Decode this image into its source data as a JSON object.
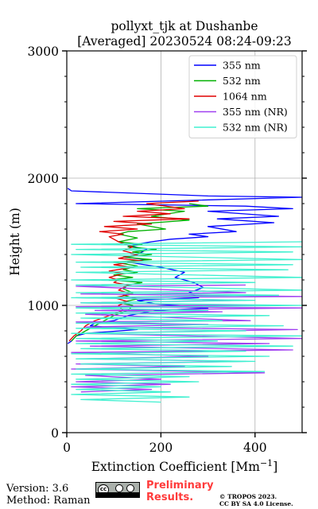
{
  "chart_data": {
    "type": "line",
    "title_line1": "pollyxt_tjk at Dushanbe",
    "title_line2": "[Averaged] 20230524 08:24-09:23",
    "xlabel": "Extinction Coefficient [Mm",
    "xlabel_sup": "−1",
    "xlabel_end": "]",
    "ylabel": "Height (m)",
    "xlim": [
      0,
      500
    ],
    "ylim": [
      0,
      3000
    ],
    "xticks": [
      0,
      200,
      400
    ],
    "yticks": [
      0,
      1000,
      2000,
      3000
    ],
    "grid": true,
    "legend_position": "top-right",
    "series": [
      {
        "name": "355 nm",
        "color": "#0000ff",
        "points": [
          [
            2,
            1920
          ],
          [
            10,
            1900
          ],
          [
            300,
            1860
          ],
          [
            500,
            1850
          ],
          [
            20,
            1800
          ],
          [
            380,
            1780
          ],
          [
            480,
            1760
          ],
          [
            300,
            1740
          ],
          [
            450,
            1700
          ],
          [
            320,
            1680
          ],
          [
            440,
            1650
          ],
          [
            300,
            1620
          ],
          [
            360,
            1580
          ],
          [
            260,
            1560
          ],
          [
            300,
            1540
          ],
          [
            220,
            1520
          ],
          [
            180,
            1500
          ],
          [
            130,
            1470
          ],
          [
            170,
            1440
          ],
          [
            150,
            1400
          ],
          [
            120,
            1380
          ],
          [
            170,
            1360
          ],
          [
            130,
            1340
          ],
          [
            200,
            1300
          ],
          [
            250,
            1260
          ],
          [
            230,
            1220
          ],
          [
            270,
            1180
          ],
          [
            290,
            1140
          ],
          [
            260,
            1100
          ],
          [
            280,
            1060
          ],
          [
            150,
            1040
          ],
          [
            190,
            1010
          ],
          [
            300,
            980
          ],
          [
            190,
            960
          ],
          [
            130,
            920
          ],
          [
            100,
            880
          ],
          [
            60,
            860
          ],
          [
            50,
            840
          ],
          [
            150,
            810
          ],
          [
            40,
            780
          ],
          [
            20,
            760
          ],
          [
            10,
            720
          ],
          [
            2,
            700
          ]
        ]
      },
      {
        "name": "532 nm",
        "color": "#00b000",
        "points": [
          [
            260,
            1800
          ],
          [
            300,
            1780
          ],
          [
            150,
            1760
          ],
          [
            250,
            1740
          ],
          [
            180,
            1700
          ],
          [
            260,
            1670
          ],
          [
            150,
            1640
          ],
          [
            210,
            1600
          ],
          [
            130,
            1580
          ],
          [
            110,
            1560
          ],
          [
            150,
            1530
          ],
          [
            110,
            1500
          ],
          [
            160,
            1480
          ],
          [
            130,
            1460
          ],
          [
            190,
            1440
          ],
          [
            140,
            1420
          ],
          [
            180,
            1400
          ],
          [
            120,
            1380
          ],
          [
            180,
            1360
          ],
          [
            100,
            1340
          ],
          [
            150,
            1310
          ],
          [
            120,
            1280
          ],
          [
            150,
            1260
          ],
          [
            100,
            1240
          ],
          [
            140,
            1220
          ],
          [
            90,
            1200
          ],
          [
            160,
            1180
          ],
          [
            130,
            1160
          ],
          [
            120,
            1130
          ],
          [
            140,
            1100
          ],
          [
            120,
            1080
          ],
          [
            150,
            1050
          ],
          [
            110,
            1020
          ],
          [
            140,
            1000
          ],
          [
            130,
            960
          ],
          [
            100,
            920
          ],
          [
            80,
            880
          ],
          [
            60,
            840
          ],
          [
            40,
            800
          ],
          [
            20,
            760
          ],
          [
            10,
            720
          ]
        ]
      },
      {
        "name": "1064 nm",
        "color": "#e00000",
        "points": [
          [
            280,
            1820
          ],
          [
            170,
            1800
          ],
          [
            250,
            1760
          ],
          [
            150,
            1740
          ],
          [
            220,
            1720
          ],
          [
            120,
            1700
          ],
          [
            260,
            1680
          ],
          [
            100,
            1660
          ],
          [
            180,
            1640
          ],
          [
            80,
            1620
          ],
          [
            150,
            1600
          ],
          [
            70,
            1580
          ],
          [
            120,
            1560
          ],
          [
            90,
            1540
          ],
          [
            110,
            1500
          ],
          [
            140,
            1460
          ],
          [
            120,
            1430
          ],
          [
            150,
            1400
          ],
          [
            110,
            1370
          ],
          [
            160,
            1350
          ],
          [
            100,
            1320
          ],
          [
            140,
            1300
          ],
          [
            90,
            1270
          ],
          [
            120,
            1250
          ],
          [
            90,
            1220
          ],
          [
            110,
            1200
          ],
          [
            100,
            1180
          ],
          [
            130,
            1160
          ],
          [
            110,
            1120
          ],
          [
            140,
            1090
          ],
          [
            100,
            1060
          ],
          [
            130,
            1030
          ],
          [
            110,
            1000
          ],
          [
            120,
            960
          ],
          [
            90,
            920
          ],
          [
            60,
            880
          ],
          [
            40,
            840
          ],
          [
            30,
            800
          ],
          [
            15,
            760
          ],
          [
            5,
            720
          ]
        ]
      },
      {
        "name": "355 nm (NR)",
        "color": "#a040f0",
        "points": [
          [
            380,
            1160
          ],
          [
            20,
            1150
          ],
          [
            380,
            1100
          ],
          [
            30,
            1090
          ],
          [
            500,
            1070
          ],
          [
            20,
            1060
          ],
          [
            380,
            1040
          ],
          [
            30,
            1020
          ],
          [
            400,
            1000
          ],
          [
            20,
            990
          ],
          [
            500,
            980
          ],
          [
            60,
            960
          ],
          [
            330,
            950
          ],
          [
            40,
            930
          ],
          [
            390,
            880
          ],
          [
            20,
            870
          ],
          [
            300,
            850
          ],
          [
            40,
            830
          ],
          [
            490,
            810
          ],
          [
            30,
            780
          ],
          [
            500,
            740
          ],
          [
            20,
            720
          ],
          [
            430,
            700
          ],
          [
            50,
            680
          ],
          [
            480,
            650
          ],
          [
            10,
            630
          ],
          [
            300,
            600
          ],
          [
            40,
            580
          ],
          [
            380,
            560
          ],
          [
            20,
            540
          ],
          [
            250,
            520
          ],
          [
            10,
            500
          ],
          [
            420,
            470
          ],
          [
            40,
            450
          ],
          [
            200,
            420
          ],
          [
            20,
            400
          ],
          [
            220,
            380
          ],
          [
            10,
            360
          ],
          [
            180,
            340
          ],
          [
            30,
            320
          ]
        ]
      },
      {
        "name": "532 nm (NR)",
        "color": "#40f0d0",
        "points": [
          [
            500,
            1500
          ],
          [
            10,
            1480
          ],
          [
            500,
            1460
          ],
          [
            20,
            1440
          ],
          [
            480,
            1420
          ],
          [
            10,
            1400
          ],
          [
            500,
            1360
          ],
          [
            20,
            1340
          ],
          [
            480,
            1320
          ],
          [
            30,
            1300
          ],
          [
            470,
            1280
          ],
          [
            20,
            1260
          ],
          [
            500,
            1220
          ],
          [
            10,
            1200
          ],
          [
            400,
            1180
          ],
          [
            20,
            1160
          ],
          [
            500,
            1120
          ],
          [
            20,
            1100
          ],
          [
            450,
            1080
          ],
          [
            10,
            1060
          ],
          [
            400,
            1040
          ],
          [
            30,
            1020
          ],
          [
            500,
            1000
          ],
          [
            20,
            980
          ],
          [
            300,
            960
          ],
          [
            20,
            940
          ],
          [
            430,
            920
          ],
          [
            30,
            900
          ],
          [
            330,
            880
          ],
          [
            20,
            860
          ],
          [
            460,
            840
          ],
          [
            20,
            820
          ],
          [
            380,
            800
          ],
          [
            10,
            780
          ],
          [
            500,
            760
          ],
          [
            20,
            740
          ],
          [
            320,
            720
          ],
          [
            20,
            700
          ],
          [
            480,
            680
          ],
          [
            30,
            660
          ],
          [
            380,
            640
          ],
          [
            10,
            620
          ],
          [
            430,
            600
          ],
          [
            20,
            580
          ],
          [
            400,
            560
          ],
          [
            30,
            540
          ],
          [
            350,
            520
          ],
          [
            20,
            500
          ],
          [
            420,
            480
          ],
          [
            10,
            460
          ],
          [
            260,
            440
          ],
          [
            20,
            420
          ],
          [
            280,
            400
          ],
          [
            10,
            380
          ],
          [
            200,
            360
          ],
          [
            20,
            340
          ],
          [
            220,
            320
          ],
          [
            10,
            300
          ],
          [
            260,
            280
          ],
          [
            30,
            260
          ],
          [
            200,
            240
          ]
        ]
      }
    ]
  },
  "footer": {
    "version": "Version: 3.6",
    "method": "Method: Raman",
    "prelim_line1": "Preliminary",
    "prelim_line2": "Results.",
    "copyright_line1": "© TROPOS 2023.",
    "copyright_line2": "CC BY SA 4.0 License.",
    "license_icon": "cc-by-sa-badge"
  }
}
